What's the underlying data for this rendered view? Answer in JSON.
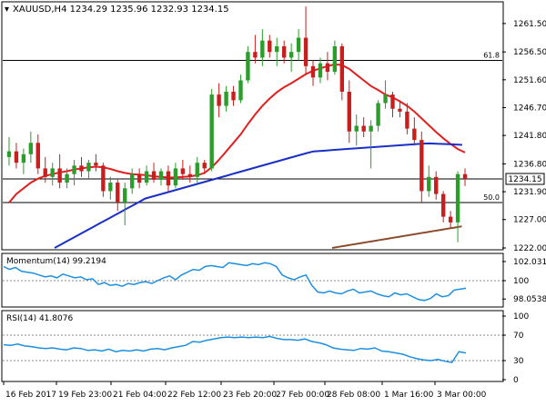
{
  "header": {
    "symbol_line": "XAUUSD,H4  1234.29 1235.96 1232.93 1234.15"
  },
  "colors": {
    "candle_up": "#2a9d2a",
    "candle_down": "#c81e1e",
    "ma_red": "#e02020",
    "ma_blue": "#1a2fc8",
    "ma_brown": "#8b4a2b",
    "indicator": "#1e8fe0",
    "axis": "#000000",
    "level_line": "#000000",
    "dotted": "#888888"
  },
  "chart_data": [
    {
      "type": "candlestick",
      "title": "XAUUSD,H4",
      "ylim": [
        1222.0,
        1265.0
      ],
      "y_ticks": [
        1261.5,
        1256.5,
        1251.6,
        1246.7,
        1241.8,
        1236.8,
        1231.9,
        1227.0,
        1222.0
      ],
      "price_tag": "1234.15",
      "levels": [
        {
          "label": "61.8",
          "value": 1255.0
        },
        {
          "label": "50.0",
          "value": 1230.0
        }
      ],
      "current_price": 1234.15,
      "candles": [
        {
          "o": 1238.0,
          "h": 1241.5,
          "l": 1236.5,
          "c": 1239.0
        },
        {
          "o": 1239.0,
          "h": 1240.5,
          "l": 1236.0,
          "c": 1237.0
        },
        {
          "o": 1237.0,
          "h": 1239.5,
          "l": 1235.0,
          "c": 1238.5
        },
        {
          "o": 1238.5,
          "h": 1242.5,
          "l": 1237.0,
          "c": 1240.5
        },
        {
          "o": 1240.5,
          "h": 1242.0,
          "l": 1235.0,
          "c": 1236.0
        },
        {
          "o": 1236.0,
          "h": 1238.0,
          "l": 1233.5,
          "c": 1234.5
        },
        {
          "o": 1234.5,
          "h": 1237.0,
          "l": 1233.0,
          "c": 1236.0
        },
        {
          "o": 1236.0,
          "h": 1238.5,
          "l": 1232.5,
          "c": 1233.5
        },
        {
          "o": 1233.5,
          "h": 1236.0,
          "l": 1232.5,
          "c": 1235.0
        },
        {
          "o": 1235.0,
          "h": 1237.5,
          "l": 1233.0,
          "c": 1236.5
        },
        {
          "o": 1236.5,
          "h": 1238.0,
          "l": 1234.5,
          "c": 1235.5
        },
        {
          "o": 1235.5,
          "h": 1237.5,
          "l": 1234.0,
          "c": 1237.0
        },
        {
          "o": 1237.0,
          "h": 1238.5,
          "l": 1235.5,
          "c": 1236.5
        },
        {
          "o": 1236.5,
          "h": 1237.0,
          "l": 1231.0,
          "c": 1232.0
        },
        {
          "o": 1232.0,
          "h": 1234.5,
          "l": 1230.5,
          "c": 1233.5
        },
        {
          "o": 1233.5,
          "h": 1234.0,
          "l": 1228.5,
          "c": 1230.0
        },
        {
          "o": 1230.0,
          "h": 1233.5,
          "l": 1226.0,
          "c": 1232.5
        },
        {
          "o": 1232.5,
          "h": 1236.0,
          "l": 1231.5,
          "c": 1235.0
        },
        {
          "o": 1235.0,
          "h": 1236.0,
          "l": 1232.5,
          "c": 1233.5
        },
        {
          "o": 1233.5,
          "h": 1236.5,
          "l": 1233.0,
          "c": 1235.5
        },
        {
          "o": 1235.5,
          "h": 1237.0,
          "l": 1233.5,
          "c": 1234.0
        },
        {
          "o": 1234.0,
          "h": 1236.0,
          "l": 1233.0,
          "c": 1235.5
        },
        {
          "o": 1235.5,
          "h": 1236.5,
          "l": 1232.0,
          "c": 1233.0
        },
        {
          "o": 1233.0,
          "h": 1237.0,
          "l": 1232.5,
          "c": 1236.0
        },
        {
          "o": 1236.0,
          "h": 1237.5,
          "l": 1234.0,
          "c": 1235.0
        },
        {
          "o": 1235.0,
          "h": 1236.5,
          "l": 1233.5,
          "c": 1234.5
        },
        {
          "o": 1234.5,
          "h": 1238.0,
          "l": 1233.5,
          "c": 1237.0
        },
        {
          "o": 1237.0,
          "h": 1237.5,
          "l": 1235.0,
          "c": 1236.0
        },
        {
          "o": 1236.0,
          "h": 1250.0,
          "l": 1235.5,
          "c": 1249.0
        },
        {
          "o": 1249.0,
          "h": 1251.0,
          "l": 1245.0,
          "c": 1247.0
        },
        {
          "o": 1247.0,
          "h": 1250.5,
          "l": 1246.0,
          "c": 1249.5
        },
        {
          "o": 1249.5,
          "h": 1250.5,
          "l": 1247.0,
          "c": 1248.0
        },
        {
          "o": 1248.0,
          "h": 1252.5,
          "l": 1247.5,
          "c": 1251.5
        },
        {
          "o": 1251.5,
          "h": 1257.5,
          "l": 1251.0,
          "c": 1256.5
        },
        {
          "o": 1256.5,
          "h": 1259.5,
          "l": 1254.5,
          "c": 1255.5
        },
        {
          "o": 1255.5,
          "h": 1260.5,
          "l": 1254.0,
          "c": 1258.5
        },
        {
          "o": 1258.5,
          "h": 1259.5,
          "l": 1255.5,
          "c": 1256.5
        },
        {
          "o": 1256.5,
          "h": 1259.0,
          "l": 1254.0,
          "c": 1257.5
        },
        {
          "o": 1257.5,
          "h": 1258.5,
          "l": 1254.5,
          "c": 1255.5
        },
        {
          "o": 1255.5,
          "h": 1258.0,
          "l": 1253.0,
          "c": 1256.5
        },
        {
          "o": 1256.5,
          "h": 1260.5,
          "l": 1255.0,
          "c": 1259.0
        },
        {
          "o": 1259.0,
          "h": 1264.5,
          "l": 1252.5,
          "c": 1254.0
        },
        {
          "o": 1254.0,
          "h": 1255.0,
          "l": 1250.5,
          "c": 1252.0
        },
        {
          "o": 1252.0,
          "h": 1255.5,
          "l": 1251.0,
          "c": 1254.5
        },
        {
          "o": 1254.5,
          "h": 1256.5,
          "l": 1251.5,
          "c": 1253.0
        },
        {
          "o": 1253.0,
          "h": 1258.5,
          "l": 1252.5,
          "c": 1257.5
        },
        {
          "o": 1257.5,
          "h": 1258.0,
          "l": 1248.0,
          "c": 1249.5
        },
        {
          "o": 1249.5,
          "h": 1251.5,
          "l": 1240.5,
          "c": 1242.5
        },
        {
          "o": 1242.5,
          "h": 1245.5,
          "l": 1240.0,
          "c": 1243.5
        },
        {
          "o": 1243.5,
          "h": 1245.0,
          "l": 1241.5,
          "c": 1242.5
        },
        {
          "o": 1242.5,
          "h": 1244.5,
          "l": 1236.0,
          "c": 1243.5
        },
        {
          "o": 1243.5,
          "h": 1248.0,
          "l": 1242.5,
          "c": 1247.5
        },
        {
          "o": 1247.5,
          "h": 1251.5,
          "l": 1246.5,
          "c": 1249.0
        },
        {
          "o": 1249.0,
          "h": 1249.5,
          "l": 1245.0,
          "c": 1246.5
        },
        {
          "o": 1246.5,
          "h": 1248.0,
          "l": 1245.0,
          "c": 1246.0
        },
        {
          "o": 1246.0,
          "h": 1247.5,
          "l": 1242.0,
          "c": 1243.0
        },
        {
          "o": 1243.0,
          "h": 1245.0,
          "l": 1240.0,
          "c": 1241.0
        },
        {
          "o": 1241.0,
          "h": 1242.5,
          "l": 1230.0,
          "c": 1232.0
        },
        {
          "o": 1232.0,
          "h": 1236.5,
          "l": 1231.0,
          "c": 1234.5
        },
        {
          "o": 1234.5,
          "h": 1235.5,
          "l": 1230.5,
          "c": 1231.5
        },
        {
          "o": 1231.5,
          "h": 1232.0,
          "l": 1226.5,
          "c": 1227.5
        },
        {
          "o": 1227.5,
          "h": 1228.5,
          "l": 1225.5,
          "c": 1226.5
        },
        {
          "o": 1226.5,
          "h": 1235.5,
          "l": 1223.0,
          "c": 1235.0
        },
        {
          "o": 1235.0,
          "h": 1236.0,
          "l": 1232.9,
          "c": 1234.15
        }
      ],
      "ma_red": [
        1230.0,
        1231.5,
        1232.5,
        1233.5,
        1234.2,
        1234.7,
        1235.0,
        1235.3,
        1235.5,
        1235.8,
        1236.0,
        1236.2,
        1236.3,
        1236.2,
        1235.9,
        1235.5,
        1235.2,
        1235.0,
        1234.9,
        1234.8,
        1234.6,
        1234.5,
        1234.4,
        1234.4,
        1234.5,
        1234.6,
        1234.8,
        1235.2,
        1236.2,
        1237.5,
        1239.0,
        1240.5,
        1242.0,
        1243.8,
        1245.5,
        1247.0,
        1248.3,
        1249.4,
        1250.3,
        1251.0,
        1251.8,
        1252.6,
        1253.2,
        1253.6,
        1254.0,
        1254.3,
        1254.2,
        1253.5,
        1252.5,
        1251.5,
        1250.5,
        1249.8,
        1249.0,
        1248.5,
        1247.8,
        1247.0,
        1246.0,
        1244.8,
        1243.6,
        1242.4,
        1241.3,
        1240.3,
        1239.4,
        1238.8
      ]
    },
    {
      "type": "line",
      "title": "Momentum(14) 99.2194",
      "ylim": [
        97.4,
        102.7
      ],
      "y_ticks": [
        102.0312,
        100.0,
        98.0538
      ],
      "reference": 100.0,
      "values": [
        101.5,
        101.2,
        101.4,
        101.0,
        100.9,
        100.8,
        100.6,
        100.4,
        100.5,
        100.3,
        100.7,
        100.5,
        100.3,
        100.4,
        100.1,
        100.2,
        99.6,
        99.8,
        99.5,
        99.6,
        99.4,
        99.7,
        99.6,
        99.8,
        99.9,
        99.7,
        100.0,
        100.3,
        100.5,
        100.1,
        100.6,
        100.9,
        101.2,
        101.1,
        101.5,
        101.6,
        101.5,
        101.4,
        101.9,
        101.8,
        101.7,
        101.6,
        101.8,
        101.7,
        101.9,
        101.8,
        101.5,
        100.6,
        100.3,
        100.1,
        100.4,
        100.6,
        99.5,
        98.8,
        98.7,
        98.9,
        98.7,
        98.6,
        98.9,
        99.1,
        98.7,
        98.8,
        98.9,
        98.6,
        98.4,
        98.3,
        98.7,
        98.5,
        98.6,
        98.3,
        98.0,
        97.9,
        98.1,
        98.6,
        98.3,
        98.4,
        99.0,
        99.1,
        99.2
      ]
    },
    {
      "type": "line",
      "title": "RSI(14) 41.8076",
      "ylim": [
        0,
        100
      ],
      "y_ticks": [
        100,
        70,
        30,
        0
      ],
      "dotted_levels": [
        70,
        30
      ],
      "values": [
        55,
        54,
        56,
        53,
        52,
        50,
        49,
        50,
        48,
        47,
        50,
        49,
        46,
        47,
        45,
        48,
        44,
        46,
        45,
        47,
        45,
        48,
        49,
        47,
        50,
        52,
        54,
        60,
        59,
        62,
        64,
        66,
        67,
        66,
        67,
        66,
        67,
        66,
        68,
        65,
        63,
        63,
        62,
        64,
        60,
        58,
        55,
        50,
        48,
        47,
        46,
        49,
        48,
        50,
        45,
        44,
        42,
        40,
        36,
        33,
        31,
        30,
        32,
        29,
        27,
        44,
        42
      ]
    }
  ],
  "x_axis": {
    "labels": [
      "16 Feb 2017",
      "19 Feb 23:00",
      "21 Feb 04:00",
      "22 Feb 12:00",
      "23 Feb 20:00",
      "27 Feb 00:00",
      "28 Feb 08:00",
      "1 Mar 16:00",
      "3 Mar 00:00"
    ]
  }
}
